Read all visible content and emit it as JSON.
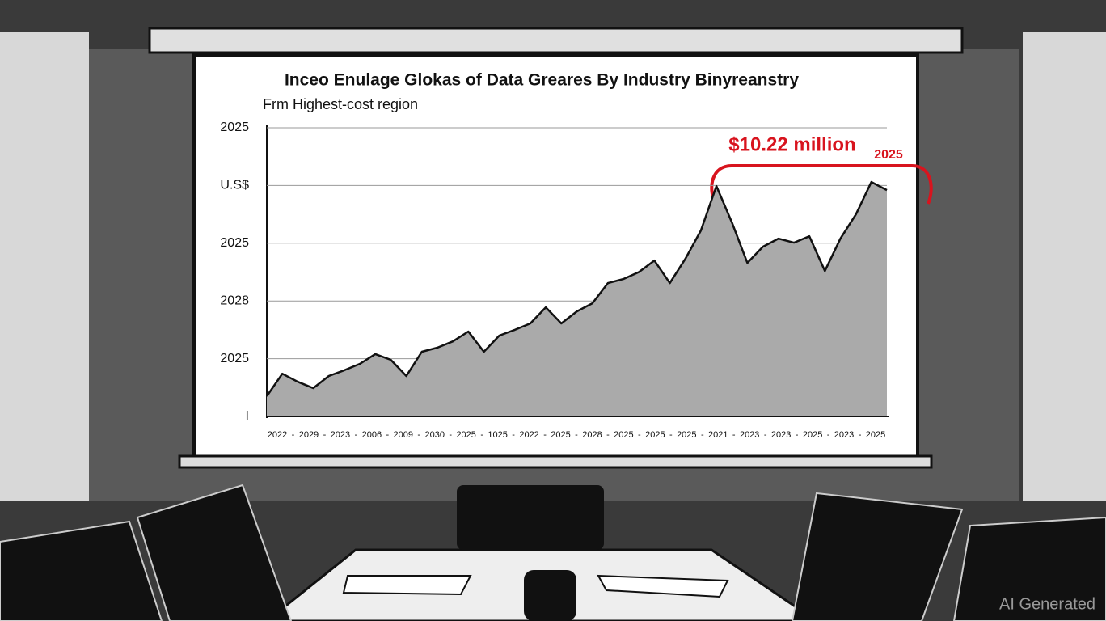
{
  "chart_data": {
    "type": "area",
    "title": "Inceo Enulage Glokas of Data Greares By Industry Binyreanstry",
    "subtitle": "Frm Highest-cost region",
    "annotation": "$10.22 million",
    "annotation_year": "2025",
    "watermark": "AI Generated",
    "xtick_labels": [
      "2022",
      "2029",
      "2023",
      "2006",
      "2009",
      "2030",
      "2025",
      "1025",
      "2022",
      "2025",
      "2028",
      "2025",
      "2025",
      "2025",
      "2021",
      "2023",
      "2023",
      "2025",
      "2023",
      "2025"
    ],
    "xtick_separator": "-",
    "ylim": [
      0,
      5
    ],
    "yticks": [
      {
        "value": 0,
        "label": "I"
      },
      {
        "value": 1,
        "label": "2025"
      },
      {
        "value": 2,
        "label": "2028"
      },
      {
        "value": 3,
        "label": "2025"
      },
      {
        "value": 4,
        "label": "U.S$"
      },
      {
        "value": 5,
        "label": "2025"
      }
    ],
    "grid": true,
    "series": [
      {
        "color": "#111111",
        "fill": "#aaaaaa",
        "values": [
          0.35,
          0.74,
          0.6,
          0.49,
          0.7,
          0.8,
          0.91,
          1.08,
          0.98,
          0.7,
          1.12,
          1.19,
          1.3,
          1.47,
          1.12,
          1.4,
          1.5,
          1.61,
          1.89,
          1.61,
          1.82,
          1.96,
          2.31,
          2.38,
          2.5,
          2.7,
          2.31,
          2.73,
          3.22,
          3.99,
          3.36,
          2.66,
          2.94,
          3.08,
          3.01,
          3.12,
          2.52,
          3.08,
          3.5,
          4.06,
          3.92
        ]
      }
    ]
  }
}
